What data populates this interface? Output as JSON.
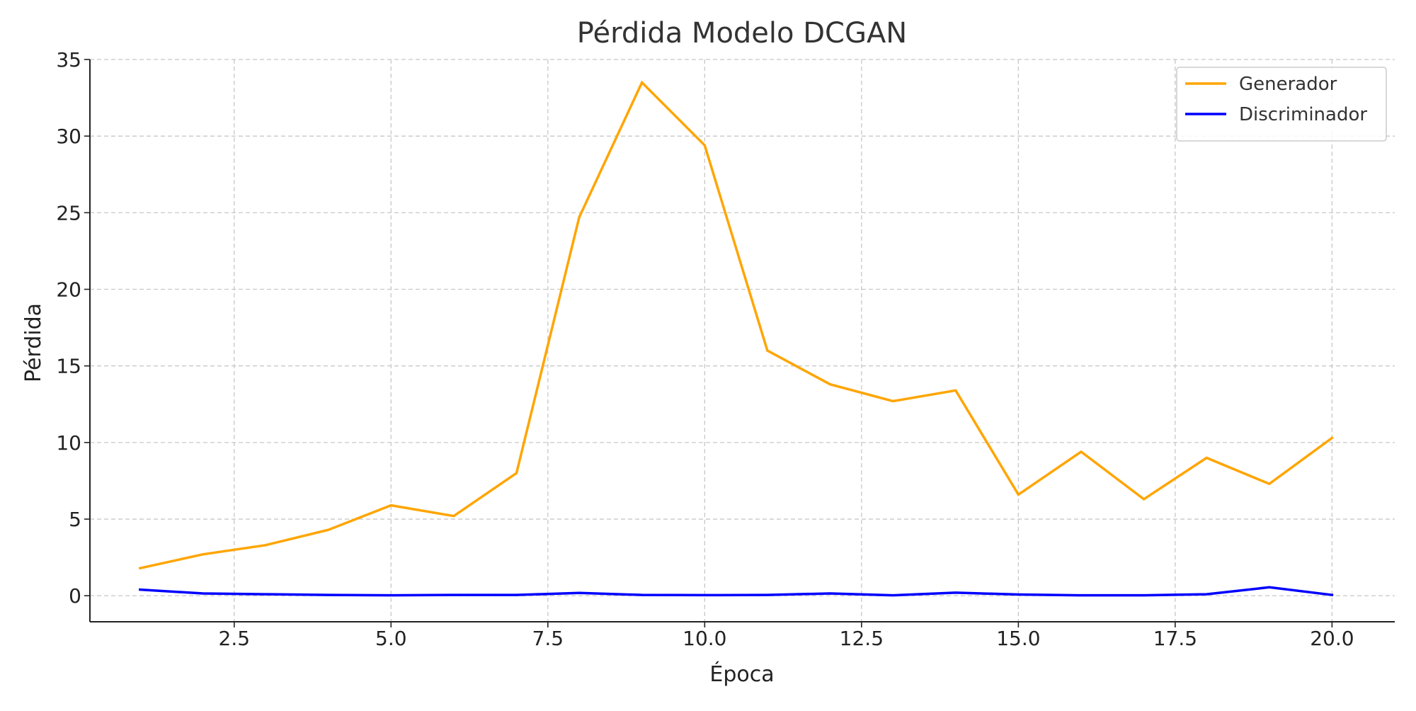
{
  "chart_data": {
    "type": "line",
    "title": "Pérdida Modelo DCGAN",
    "xlabel": "Época",
    "ylabel": "Pérdida",
    "xlim": [
      0.2,
      21.0
    ],
    "ylim": [
      -1.7,
      35.0
    ],
    "xticks": [
      2.5,
      5.0,
      7.5,
      10.0,
      12.5,
      15.0,
      17.5,
      20.0
    ],
    "xtick_labels": [
      "2.5",
      "5.0",
      "7.5",
      "10.0",
      "12.5",
      "15.0",
      "17.5",
      "20.0"
    ],
    "yticks": [
      0,
      5,
      10,
      15,
      20,
      25,
      30,
      35
    ],
    "ytick_labels": [
      "0",
      "5",
      "10",
      "15",
      "20",
      "25",
      "30",
      "35"
    ],
    "grid": true,
    "legend_position": "top-right",
    "x": [
      1,
      2,
      3,
      4,
      5,
      6,
      7,
      8,
      9,
      10,
      11,
      12,
      13,
      14,
      15,
      16,
      17,
      18,
      19,
      20
    ],
    "series": [
      {
        "name": "Generador",
        "color": "#FFA500",
        "values": [
          1.8,
          2.7,
          3.3,
          4.3,
          5.9,
          5.2,
          8.0,
          24.7,
          33.5,
          29.4,
          16.0,
          13.8,
          12.7,
          13.4,
          6.6,
          9.4,
          6.3,
          9.0,
          7.3,
          10.3
        ]
      },
      {
        "name": "Discriminador",
        "color": "#0000FF",
        "values": [
          0.4,
          0.15,
          0.1,
          0.05,
          0.03,
          0.05,
          0.05,
          0.18,
          0.05,
          0.04,
          0.05,
          0.15,
          0.03,
          0.2,
          0.08,
          0.03,
          0.03,
          0.1,
          0.55,
          0.05
        ]
      }
    ]
  }
}
